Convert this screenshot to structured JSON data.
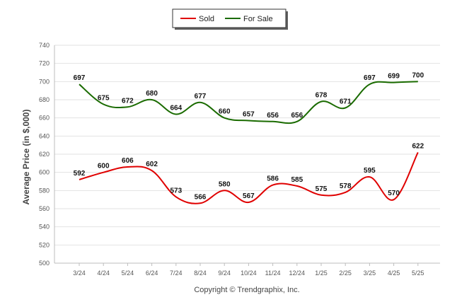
{
  "chart_data": {
    "type": "line",
    "title": "",
    "xlabel": "",
    "ylabel": "Average Price (in $,000)",
    "ylim": [
      500,
      740
    ],
    "yticks": [
      500,
      520,
      540,
      560,
      580,
      600,
      620,
      640,
      660,
      680,
      700,
      720,
      740
    ],
    "grid": true,
    "legend_position": "top-center",
    "categories": [
      "3/24",
      "4/24",
      "5/24",
      "6/24",
      "7/24",
      "8/24",
      "9/24",
      "10/24",
      "11/24",
      "12/24",
      "1/25",
      "2/25",
      "3/25",
      "4/25",
      "5/25"
    ],
    "series": [
      {
        "name": "Sold",
        "color": "#e00000",
        "values": [
          592,
          600,
          606,
          602,
          573,
          566,
          580,
          567,
          586,
          585,
          575,
          578,
          595,
          570,
          622
        ]
      },
      {
        "name": "For Sale",
        "color": "#1a6b00",
        "values": [
          697,
          675,
          672,
          680,
          664,
          677,
          660,
          657,
          656,
          656,
          678,
          671,
          697,
          699,
          700
        ]
      }
    ],
    "credit": "Copyright © Trendgraphix, Inc."
  }
}
